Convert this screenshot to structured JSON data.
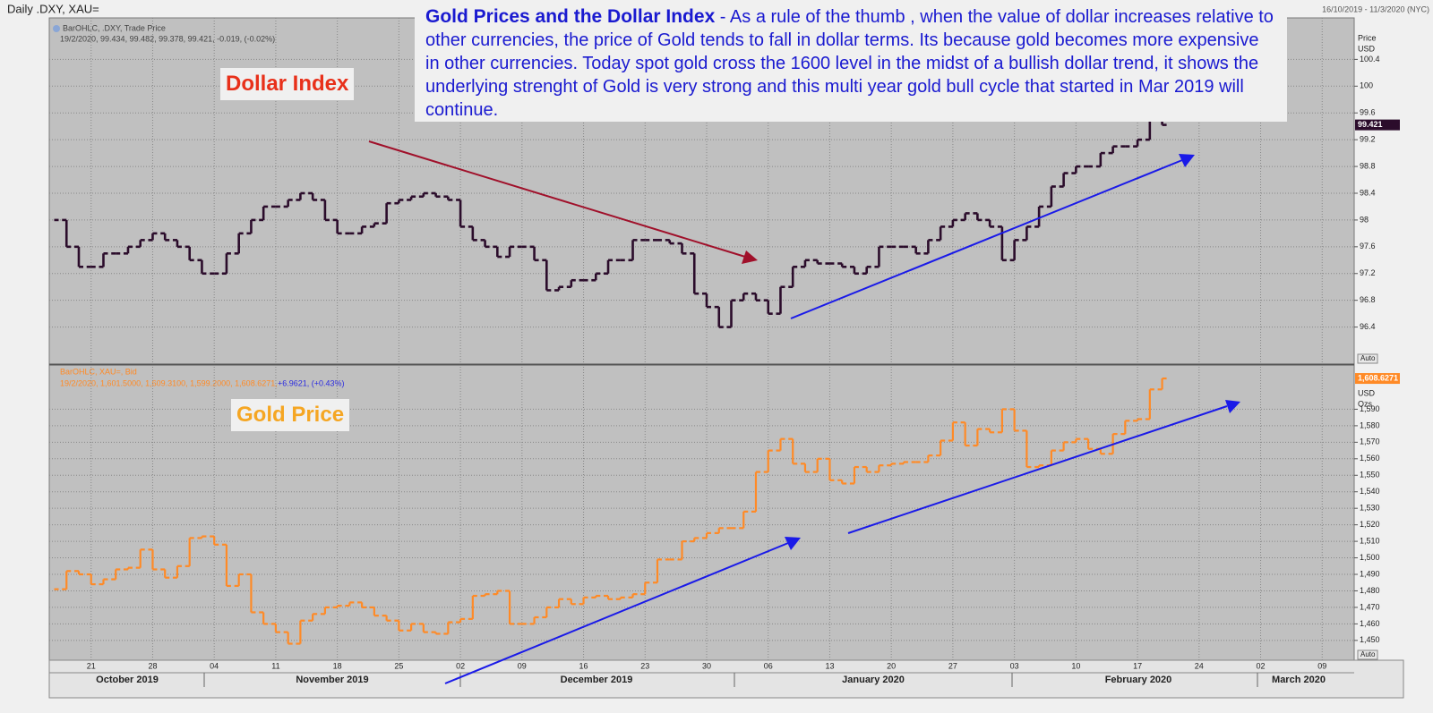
{
  "header": {
    "title": "Daily .DXY, XAU=",
    "range": "16/10/2019 - 11/3/2020 (NYC)"
  },
  "annotation": {
    "title": "Gold Prices and the Dollar Index",
    "text": " - As a rule of the thumb , when the value of dollar increases relative to other currencies,  the price of Gold tends to fall in dollar terms. Its because gold becomes more expensive in other currencies.  Today spot gold cross the 1600 level in the midst of a bullish dollar trend, it shows the underlying strenght of Gold is very strong and this multi year gold bull cycle that started in Mar 2019 will continue."
  },
  "months": [
    "October 2019",
    "November 2019",
    "December 2019",
    "January 2020",
    "February 2020",
    "March 2020"
  ],
  "chart_data": [
    {
      "type": "ohlc",
      "title": "Dollar Index",
      "axis_label": [
        "Price",
        "USD"
      ],
      "scale_mode": "Auto",
      "series": [
        {
          "name": "BarOHLC, .DXY, Trade Price",
          "quote": "19/2/2020, 99.434, 99.482, 99.378, 99.421, -0.019, (-0.02%)",
          "color": "#2b0c2b",
          "values": [
            98.0,
            97.6,
            97.3,
            97.3,
            97.5,
            97.5,
            97.6,
            97.7,
            97.8,
            97.7,
            97.6,
            97.4,
            97.2,
            97.2,
            97.5,
            97.8,
            98.0,
            98.2,
            98.2,
            98.3,
            98.4,
            98.3,
            98.0,
            97.8,
            97.8,
            97.9,
            97.95,
            98.25,
            98.3,
            98.35,
            98.4,
            98.35,
            98.3,
            97.9,
            97.7,
            97.6,
            97.45,
            97.6,
            97.6,
            97.4,
            96.95,
            97.0,
            97.1,
            97.1,
            97.2,
            97.4,
            97.4,
            97.7,
            97.7,
            97.7,
            97.65,
            97.5,
            96.9,
            96.7,
            96.4,
            96.8,
            96.9,
            96.8,
            96.6,
            97.0,
            97.3,
            97.4,
            97.35,
            97.35,
            97.3,
            97.2,
            97.3,
            97.6,
            97.6,
            97.6,
            97.5,
            97.7,
            97.9,
            98.0,
            98.1,
            98.0,
            97.9,
            97.4,
            97.7,
            97.9,
            98.2,
            98.5,
            98.7,
            98.8,
            98.8,
            99.0,
            99.1,
            99.1,
            99.2,
            99.5,
            99.421,
            null,
            null,
            null,
            null,
            null,
            null,
            null,
            null,
            null,
            null,
            null,
            null,
            null,
            null,
            null
          ],
          "value_labels": [
            null,
            null,
            null,
            null,
            null,
            null,
            null,
            null,
            null,
            null,
            null,
            null,
            null,
            null,
            null,
            null,
            null,
            null,
            null,
            null,
            null,
            null,
            null,
            null,
            null,
            null,
            null,
            null,
            null,
            null,
            null,
            null,
            null,
            null,
            null,
            null,
            null,
            null,
            null,
            null,
            null,
            null,
            null,
            null,
            null,
            null,
            null,
            null,
            null,
            null,
            null,
            null,
            null,
            null,
            null,
            null,
            null,
            null,
            null,
            null,
            null,
            null,
            null,
            null,
            null,
            null,
            null,
            null,
            null,
            null,
            null,
            null,
            null,
            null,
            null,
            null,
            null,
            null,
            null,
            null,
            null,
            null,
            null,
            null,
            null,
            null,
            null,
            null,
            null,
            null,
            "99.421",
            null,
            null,
            null,
            null,
            null,
            null,
            null,
            null,
            null,
            null,
            null,
            null,
            null,
            null,
            null
          ]
        }
      ],
      "ylim": [
        95.86,
        101.02
      ],
      "yticks": [
        96.4,
        96.8,
        97.2,
        97.6,
        98,
        98.4,
        98.8,
        99.2,
        99.6,
        100,
        100.4
      ],
      "grid": true
    },
    {
      "type": "ohlc",
      "title": "Gold Price",
      "axis_label": [
        "USD",
        "Ozs"
      ],
      "scale_mode": "Auto",
      "categories": [
        null,
        null,
        null,
        "21",
        null,
        null,
        null,
        null,
        "28",
        null,
        null,
        null,
        null,
        "04",
        null,
        null,
        null,
        null,
        "11",
        null,
        null,
        null,
        null,
        "18",
        null,
        null,
        null,
        null,
        "25",
        null,
        null,
        null,
        null,
        "02",
        null,
        null,
        null,
        null,
        "09",
        null,
        null,
        null,
        null,
        "16",
        null,
        null,
        null,
        null,
        "23",
        null,
        null,
        null,
        null,
        "30",
        null,
        null,
        null,
        null,
        "06",
        null,
        null,
        null,
        null,
        "13",
        null,
        null,
        null,
        null,
        "20",
        null,
        null,
        null,
        null,
        "27",
        null,
        null,
        null,
        null,
        "03",
        null,
        null,
        null,
        null,
        "10",
        null,
        null,
        null,
        null,
        "17",
        null,
        null,
        null,
        null,
        "24",
        null,
        null,
        null,
        null,
        "02",
        null,
        null,
        null,
        null,
        "09",
        null,
        null
      ],
      "series": [
        {
          "name": "BarOHLC, XAU=, Bid",
          "quote": "19/2/2020, 1,601.5000, 1,609.3100, 1,599.2000, 1,608.6271,",
          "change": "+6.9621, (+0.43%)",
          "color": "#ff8a26",
          "values": [
            1481,
            1492,
            1490,
            1484,
            1487,
            1493,
            1494,
            1505,
            1493,
            1488,
            1495,
            1512,
            1513,
            1508,
            1483,
            1490,
            1467,
            1460,
            1455,
            1448,
            1462,
            1466,
            1470,
            1471,
            1473,
            1470,
            1465,
            1462,
            1456,
            1460,
            1455,
            1454,
            1461,
            1463,
            1477,
            1478,
            1480,
            1460,
            1460,
            1464,
            1470,
            1475,
            1472,
            1476,
            1477,
            1475,
            1476,
            1478,
            1485,
            1499,
            1499,
            1510,
            1512,
            1515,
            1518,
            1518,
            1528,
            1552,
            1565,
            1572,
            1557,
            1552,
            1560,
            1547,
            1545,
            1555,
            1552,
            1556,
            1557,
            1558,
            1558,
            1562,
            1571,
            1582,
            1568,
            1578,
            1576,
            1590,
            1577,
            1555,
            1556,
            1565,
            1570,
            1572,
            1566,
            1563,
            1575,
            1583,
            1584,
            1602,
            1608.6271,
            null,
            null,
            null,
            null,
            null,
            null,
            null,
            null,
            null,
            null,
            null,
            null,
            null,
            null,
            null
          ],
          "value_labels": [
            null,
            null,
            null,
            null,
            null,
            null,
            null,
            null,
            null,
            null,
            null,
            null,
            null,
            null,
            null,
            null,
            null,
            null,
            null,
            null,
            null,
            null,
            null,
            null,
            null,
            null,
            null,
            null,
            null,
            null,
            null,
            null,
            null,
            null,
            null,
            null,
            null,
            null,
            null,
            null,
            null,
            null,
            null,
            null,
            null,
            null,
            null,
            null,
            null,
            null,
            null,
            null,
            null,
            null,
            null,
            null,
            null,
            null,
            null,
            null,
            null,
            null,
            null,
            null,
            null,
            null,
            null,
            null,
            null,
            null,
            null,
            null,
            null,
            null,
            null,
            null,
            null,
            null,
            null,
            null,
            null,
            null,
            null,
            null,
            null,
            null,
            null,
            null,
            null,
            null,
            "1,608.6271",
            null,
            null,
            null,
            null,
            null,
            null,
            null,
            null,
            null,
            null,
            null,
            null,
            null,
            null,
            null
          ]
        }
      ],
      "ylim": [
        1438,
        1615.7
      ],
      "yticks": [
        {
          "value": 1450,
          "label": "1,450"
        },
        {
          "value": 1460,
          "label": "1,460"
        },
        {
          "value": 1470,
          "label": "1,470"
        },
        {
          "value": 1480,
          "label": "1,480"
        },
        {
          "value": 1490,
          "label": "1,490"
        },
        {
          "value": 1500,
          "label": "1,500"
        },
        {
          "value": 1510,
          "label": "1,510"
        },
        {
          "value": 1520,
          "label": "1,520"
        },
        {
          "value": 1530,
          "label": "1,530"
        },
        {
          "value": 1540,
          "label": "1,540"
        },
        {
          "value": 1550,
          "label": "1,550"
        },
        {
          "value": 1560,
          "label": "1,560"
        },
        {
          "value": 1570,
          "label": "1,570"
        },
        {
          "value": 1580,
          "label": "1,580"
        },
        {
          "value": 1590,
          "label": "1,590"
        }
      ],
      "grid": true
    }
  ]
}
